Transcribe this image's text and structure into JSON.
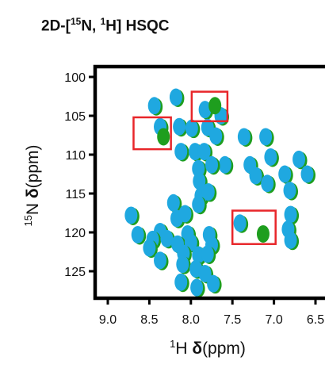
{
  "title": {
    "prefix": "2D-[",
    "iso_n": "15",
    "n_text": "N, ",
    "iso_h": "1",
    "h_text": "H] HSQC"
  },
  "chart_data": {
    "type": "scatter",
    "title": "2D-[15N, 1H] HSQC",
    "xlabel": {
      "iso": "1",
      "atom": "H ",
      "delta": "δ",
      "unit": "(ppm)"
    },
    "ylabel": {
      "iso": "15",
      "atom": "N ",
      "delta": "δ",
      "unit": "(ppm)"
    },
    "xlim": [
      9.2,
      6.5
    ],
    "ylim": [
      128.5,
      99.0
    ],
    "x_reversed": true,
    "y_reversed": true,
    "xticks": [
      9.0,
      8.5,
      8.0,
      7.5,
      7.0,
      6.5
    ],
    "xtick_labels": [
      "9.0",
      "8.5",
      "8.0",
      "7.5",
      "7.0",
      "6.5"
    ],
    "yticks": [
      100,
      105,
      110,
      115,
      120,
      125
    ],
    "ytick_labels": [
      "100",
      "105",
      "110",
      "115",
      "120",
      "125"
    ],
    "grid": false,
    "legend": "none",
    "colors": {
      "spectrum_a": "#1fa8e0",
      "spectrum_b": "#1e9e1e",
      "highlight_box": "#e8262a",
      "axis": "#000000"
    },
    "series": [
      {
        "color": "#1fa8e0",
        "points": [
          [
            8.44,
            103.7
          ],
          [
            8.18,
            102.6
          ],
          [
            7.64,
            105.0
          ],
          [
            7.36,
            107.7
          ],
          [
            7.1,
            107.7
          ],
          [
            8.37,
            106.4
          ],
          [
            8.14,
            106.4
          ],
          [
            7.99,
            106.6
          ],
          [
            7.83,
            104.2
          ],
          [
            7.8,
            106.5
          ],
          [
            8.12,
            109.6
          ],
          [
            7.95,
            109.6
          ],
          [
            7.84,
            109.6
          ],
          [
            7.7,
            107.6
          ],
          [
            7.59,
            111.3
          ],
          [
            7.29,
            111.3
          ],
          [
            7.04,
            110.3
          ],
          [
            6.7,
            110.6
          ],
          [
            7.91,
            111.8
          ],
          [
            7.75,
            111.3
          ],
          [
            7.22,
            112.7
          ],
          [
            6.87,
            112.5
          ],
          [
            7.9,
            113.4
          ],
          [
            6.6,
            112.5
          ],
          [
            7.88,
            115.3
          ],
          [
            7.79,
            114.8
          ],
          [
            7.08,
            113.7
          ],
          [
            6.81,
            114.6
          ],
          [
            7.91,
            116.4
          ],
          [
            8.21,
            116.2
          ],
          [
            6.8,
            117.7
          ],
          [
            8.72,
            117.8
          ],
          [
            8.17,
            118.2
          ],
          [
            8.07,
            117.6
          ],
          [
            8.37,
            119.9
          ],
          [
            6.83,
            119.6
          ],
          [
            8.64,
            120.3
          ],
          [
            8.46,
            120.9
          ],
          [
            8.29,
            120.8
          ],
          [
            8.04,
            120.2
          ],
          [
            7.78,
            120.3
          ],
          [
            7.41,
            118.8
          ],
          [
            8.5,
            122.0
          ],
          [
            8.16,
            121.5
          ],
          [
            8.0,
            121.3
          ],
          [
            7.75,
            121.6
          ],
          [
            6.8,
            121.0
          ],
          [
            8.09,
            122.7
          ],
          [
            7.91,
            122.9
          ],
          [
            7.8,
            122.8
          ],
          [
            8.37,
            123.6
          ],
          [
            8.1,
            124.1
          ],
          [
            7.94,
            124.7
          ],
          [
            7.83,
            125.3
          ],
          [
            8.12,
            126.4
          ],
          [
            7.93,
            127.1
          ],
          [
            7.73,
            126.6
          ]
        ]
      },
      {
        "color": "#1e9e1e",
        "points": [
          [
            7.71,
            103.7
          ],
          [
            8.33,
            107.7
          ],
          [
            7.13,
            120.2
          ]
        ]
      }
    ],
    "highlight_boxes": [
      {
        "x_range": [
          8.69,
          8.24
        ],
        "y_range": [
          105.2,
          109.3
        ]
      },
      {
        "x_range": [
          7.99,
          7.56
        ],
        "y_range": [
          101.9,
          105.7
        ]
      },
      {
        "x_range": [
          7.5,
          6.98
        ],
        "y_range": [
          117.2,
          121.5
        ]
      }
    ]
  }
}
